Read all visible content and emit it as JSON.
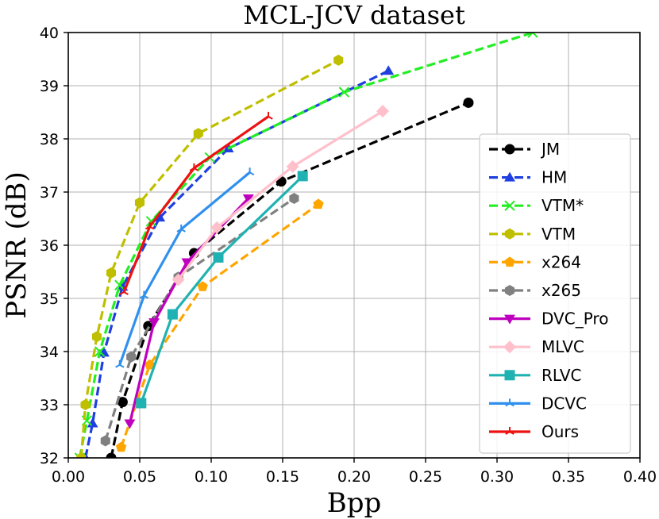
{
  "chart_data": {
    "type": "line",
    "title": "MCL-JCV dataset",
    "xlabel": "Bpp",
    "ylabel": "PSNR (dB)",
    "xlim": [
      0.0,
      0.4
    ],
    "ylim": [
      32,
      40
    ],
    "xticks": [
      "0.00",
      "0.05",
      "0.10",
      "0.15",
      "0.20",
      "0.25",
      "0.30",
      "0.35",
      "0.40"
    ],
    "yticks": [
      "32",
      "33",
      "34",
      "35",
      "36",
      "37",
      "38",
      "39",
      "40"
    ],
    "grid": true,
    "legend_position": "right",
    "series": [
      {
        "name": "JM",
        "color": "#000000",
        "dash": "dashed",
        "marker": "circle",
        "x": [
          0.03,
          0.038,
          0.056,
          0.088,
          0.149,
          0.28
        ],
        "y": [
          32.0,
          33.05,
          34.48,
          35.85,
          37.2,
          38.68
        ]
      },
      {
        "name": "HM",
        "color": "#1f3fe0",
        "dash": "dashed",
        "marker": "triangle-up",
        "x": [
          0.012,
          0.017,
          0.025,
          0.038,
          0.064,
          0.112,
          0.224
        ],
        "y": [
          32.0,
          32.65,
          33.98,
          35.22,
          36.52,
          37.82,
          39.28
        ]
      },
      {
        "name": "VTM*",
        "color": "#22ee22",
        "dash": "dashed",
        "marker": "x",
        "x": [
          0.008,
          0.013,
          0.022,
          0.036,
          0.058,
          0.099,
          0.193,
          0.325
        ],
        "y": [
          32.0,
          32.7,
          34.0,
          35.25,
          36.45,
          37.65,
          38.88,
          40.0
        ]
      },
      {
        "name": "VTM",
        "color": "#bfbf00",
        "dash": "dashed",
        "marker": "hexagon",
        "x": [
          0.009,
          0.012,
          0.02,
          0.03,
          0.05,
          0.091,
          0.189
        ],
        "y": [
          32.0,
          33.0,
          34.28,
          35.48,
          36.8,
          38.1,
          39.48
        ]
      },
      {
        "name": "x264",
        "color": "#ffa500",
        "dash": "dashed",
        "marker": "pentagon",
        "x": [
          0.037,
          0.057,
          0.094,
          0.175
        ],
        "y": [
          32.2,
          33.75,
          35.22,
          36.77
        ]
      },
      {
        "name": "x265",
        "color": "#808080",
        "dash": "dashed",
        "marker": "hexagon",
        "x": [
          0.026,
          0.044,
          0.077,
          0.158
        ],
        "y": [
          32.32,
          33.9,
          35.4,
          36.88
        ]
      },
      {
        "name": "DVC_Pro",
        "color": "#bf00bf",
        "dash": "solid",
        "marker": "triangle-down",
        "x": [
          0.043,
          0.06,
          0.083,
          0.126
        ],
        "y": [
          32.65,
          34.55,
          35.68,
          36.88
        ]
      },
      {
        "name": "MLVC",
        "color": "#ffc0cb",
        "dash": "solid",
        "marker": "diamond",
        "x": [
          0.077,
          0.104,
          0.157,
          0.22
        ],
        "y": [
          35.35,
          36.33,
          37.48,
          38.52
        ]
      },
      {
        "name": "RLVC",
        "color": "#20b2b2",
        "dash": "solid",
        "marker": "square",
        "x": [
          0.051,
          0.073,
          0.105,
          0.164
        ],
        "y": [
          33.03,
          34.7,
          35.77,
          37.3
        ]
      },
      {
        "name": "DCVC",
        "color": "#3090ee",
        "dash": "solid",
        "marker": "tri",
        "x": [
          0.036,
          0.053,
          0.079,
          0.127
        ],
        "y": [
          33.75,
          35.05,
          36.3,
          37.37
        ]
      },
      {
        "name": "Ours",
        "color": "#ee1111",
        "dash": "solid",
        "marker": "tri",
        "x": [
          0.039,
          0.057,
          0.088,
          0.14
        ],
        "y": [
          35.12,
          36.35,
          37.45,
          38.42
        ]
      }
    ]
  }
}
